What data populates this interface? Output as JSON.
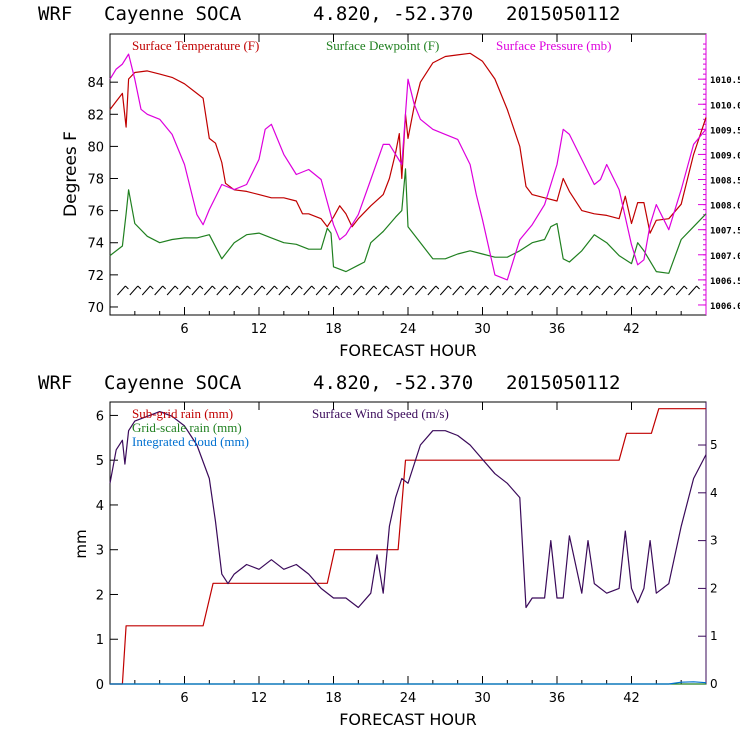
{
  "header1": {
    "model": "WRF",
    "station": "Cayenne SOCA",
    "coords": "4.820, -52.370",
    "init": "2015050112"
  },
  "header2": {
    "model": "WRF",
    "station": "Cayenne SOCA",
    "coords": "4.820, -52.370",
    "init": "2015050112"
  },
  "colors": {
    "temp": "#c00000",
    "dew": "#208020",
    "pres": "#dd00dd",
    "subrain": "#c00000",
    "gridrain": "#208020",
    "cloud": "#0070d0",
    "wind": "#3a0a5a",
    "rightaxis1": "#dd00dd",
    "rightaxis2": "#3a0a5a"
  },
  "chart_data": [
    {
      "type": "line",
      "title": "WRF Cayenne SOCA 4.820, -52.370 2015050112",
      "xlabel": "FORECAST HOUR",
      "ylabel": "Degrees F",
      "xlim": [
        0,
        48
      ],
      "ylim": [
        69.5,
        87
      ],
      "xticks": [
        "6",
        "12",
        "18",
        "24",
        "30",
        "36",
        "42"
      ],
      "yticks": [
        "70",
        "72",
        "74",
        "76",
        "78",
        "80",
        "82",
        "84"
      ],
      "y2lim": [
        1005.8,
        1011.4
      ],
      "y2ticks": [
        "1006.0",
        "1006.5",
        "1007.0",
        "1007.5",
        "1008.0",
        "1008.5",
        "1009.0",
        "1009.5",
        "1010.0",
        "1010.5"
      ],
      "legend": {
        "temp": "Surface Temperature (F)",
        "dew": "Surface Dewpoint (F)",
        "pres": "Surface Pressure (mb)"
      },
      "series": [
        {
          "name": "Surface Temperature (F)",
          "axis": "left",
          "x": [
            0,
            0.5,
            1,
            1.3,
            1.5,
            2,
            3,
            4,
            5,
            6,
            7,
            7.5,
            8,
            8.5,
            9,
            9.3,
            10,
            11,
            12,
            13,
            14,
            15,
            15.5,
            16,
            17,
            17.5,
            18,
            18.5,
            19,
            19.5,
            20,
            21,
            22,
            22.5,
            23,
            23.3,
            23.5,
            23.8,
            24,
            24.5,
            25,
            26,
            27,
            28,
            29,
            30,
            31,
            32,
            33,
            33.5,
            34,
            35,
            36,
            36.5,
            37,
            38,
            39,
            40,
            41,
            41.5,
            42,
            42.5,
            43,
            43.5,
            44,
            45,
            46,
            47,
            48
          ],
          "values": [
            82.3,
            82.8,
            83.3,
            81.2,
            84.2,
            84.6,
            84.7,
            84.5,
            84.3,
            83.9,
            83.3,
            83.0,
            80.5,
            80.2,
            79.0,
            77.7,
            77.3,
            77.2,
            77.0,
            76.8,
            76.8,
            76.6,
            75.8,
            75.8,
            75.5,
            75.0,
            75.6,
            76.3,
            75.8,
            75.0,
            75.5,
            76.3,
            77.0,
            78.0,
            79.6,
            80.8,
            78.0,
            82.0,
            80.5,
            82.5,
            84.0,
            85.2,
            85.6,
            85.7,
            85.8,
            85.3,
            84.2,
            82.3,
            80.0,
            77.5,
            77.0,
            76.8,
            76.6,
            78.0,
            77.2,
            76.0,
            75.8,
            75.7,
            75.5,
            76.9,
            75.2,
            76.5,
            76.5,
            74.6,
            75.4,
            75.5,
            76.4,
            79.5,
            81.8
          ]
        },
        {
          "name": "Surface Dewpoint (F)",
          "axis": "left",
          "x": [
            0,
            1,
            1.3,
            1.5,
            2,
            3,
            4,
            5,
            6,
            7,
            8,
            9,
            10,
            11,
            12,
            13,
            14,
            15,
            16,
            17,
            17.5,
            17.8,
            18,
            19,
            20,
            20.5,
            21,
            22,
            23,
            23.5,
            23.8,
            24,
            25,
            26,
            27,
            28,
            29,
            30,
            31,
            32,
            33,
            34,
            35,
            35.5,
            36,
            36.5,
            37,
            38,
            39,
            40,
            41,
            42,
            42.5,
            43,
            44,
            45,
            46,
            47,
            48
          ],
          "values": [
            73.2,
            73.8,
            75.8,
            77.3,
            75.2,
            74.4,
            74.0,
            74.2,
            74.3,
            74.3,
            74.5,
            73.0,
            74.0,
            74.5,
            74.6,
            74.3,
            74.0,
            73.9,
            73.6,
            73.6,
            74.9,
            74.6,
            72.5,
            72.2,
            72.6,
            72.8,
            74.0,
            74.7,
            75.6,
            76.0,
            78.6,
            75.0,
            74.0,
            73.0,
            73.0,
            73.3,
            73.5,
            73.3,
            73.1,
            73.1,
            73.5,
            74.0,
            74.2,
            75.0,
            75.2,
            73.0,
            72.8,
            73.5,
            74.5,
            74.0,
            73.2,
            72.7,
            74.0,
            73.5,
            72.2,
            72.1,
            74.2,
            75.0,
            75.8
          ]
        },
        {
          "name": "Surface Pressure (mb)",
          "axis": "right",
          "x": [
            0,
            0.5,
            1,
            1.5,
            2,
            2.5,
            3,
            4,
            5,
            6,
            7,
            7.5,
            8,
            9,
            10,
            11,
            12,
            12.5,
            13,
            14,
            15,
            16,
            17,
            18,
            18.5,
            19,
            20,
            21,
            22,
            22.5,
            23,
            23.5,
            24,
            24.5,
            25,
            26,
            27,
            28,
            29,
            29.5,
            30,
            31,
            32,
            33,
            34,
            35,
            36,
            36.5,
            37,
            38,
            39,
            39.5,
            40,
            41,
            42,
            42.5,
            43,
            43.5,
            44,
            45,
            46,
            47,
            48
          ],
          "values": [
            1010.5,
            1010.7,
            1010.8,
            1011.0,
            1010.5,
            1009.9,
            1009.8,
            1009.7,
            1009.4,
            1008.8,
            1007.8,
            1007.6,
            1007.9,
            1008.4,
            1008.3,
            1008.4,
            1008.9,
            1009.5,
            1009.6,
            1009.0,
            1008.6,
            1008.7,
            1008.5,
            1007.6,
            1007.3,
            1007.4,
            1007.8,
            1008.5,
            1009.2,
            1009.2,
            1009.0,
            1008.8,
            1010.5,
            1010.0,
            1009.7,
            1009.5,
            1009.4,
            1009.3,
            1008.8,
            1008.2,
            1007.7,
            1006.6,
            1006.5,
            1007.3,
            1007.6,
            1008.0,
            1008.8,
            1009.5,
            1009.4,
            1008.9,
            1008.4,
            1008.5,
            1008.8,
            1008.3,
            1007.2,
            1006.8,
            1006.9,
            1007.6,
            1008.0,
            1007.5,
            1008.3,
            1009.2,
            1009.5
          ]
        }
      ]
    },
    {
      "type": "line",
      "title": "WRF Cayenne SOCA 4.820, -52.370 2015050112",
      "xlabel": "FORECAST HOUR",
      "ylabel": "mm",
      "xlim": [
        0,
        48
      ],
      "ylim": [
        0,
        6.3
      ],
      "xticks": [
        "6",
        "12",
        "18",
        "24",
        "30",
        "36",
        "42"
      ],
      "yticks": [
        "0",
        "1",
        "2",
        "3",
        "4",
        "5",
        "6"
      ],
      "y2lim": [
        0,
        5.9
      ],
      "y2ticks": [
        "0",
        "1",
        "2",
        "3",
        "4",
        "5"
      ],
      "legend": {
        "subrain": "Sub-grid rain (mm)",
        "gridrain": "Grid-scale rain (mm)",
        "cloud": "Integrated cloud (mm)",
        "wind": "Surface Wind Speed (m/s)"
      },
      "series": [
        {
          "name": "Sub-grid rain (mm)",
          "axis": "left",
          "x": [
            0,
            1,
            1.3,
            7.5,
            8.3,
            17.5,
            18.1,
            23.2,
            23.8,
            41,
            41.6,
            43.6,
            44.2,
            48
          ],
          "values": [
            0,
            0,
            1.3,
            1.3,
            2.25,
            2.25,
            3.0,
            3.0,
            5.0,
            5.0,
            5.6,
            5.6,
            6.15,
            6.15
          ]
        },
        {
          "name": "Grid-scale rain (mm)",
          "axis": "left",
          "x": [
            0,
            48
          ],
          "values": [
            0,
            0
          ]
        },
        {
          "name": "Integrated cloud (mm)",
          "axis": "left",
          "x": [
            0,
            45,
            46,
            47,
            48
          ],
          "values": [
            0,
            0,
            0.04,
            0.05,
            0.03
          ]
        },
        {
          "name": "Surface Wind Speed (m/s)",
          "axis": "right",
          "x": [
            0,
            0.5,
            1,
            1.2,
            1.5,
            2,
            3,
            4,
            5,
            6,
            7,
            8,
            8.5,
            9,
            9.5,
            10,
            11,
            12,
            13,
            14,
            15,
            16,
            17,
            18,
            19,
            20,
            21,
            21.5,
            22,
            22.5,
            23,
            23.5,
            24,
            25,
            26,
            27,
            28,
            29,
            30,
            31,
            32,
            33,
            33.5,
            34,
            35,
            35.5,
            36,
            36.5,
            37,
            38,
            38.5,
            39,
            40,
            41,
            41.5,
            42,
            42.5,
            43,
            43.5,
            44,
            45,
            46,
            47,
            48
          ],
          "values": [
            4.2,
            4.9,
            5.1,
            4.6,
            5.3,
            5.5,
            5.6,
            5.7,
            5.6,
            5.4,
            5.0,
            4.3,
            3.4,
            2.3,
            2.1,
            2.3,
            2.5,
            2.4,
            2.6,
            2.4,
            2.5,
            2.3,
            2.0,
            1.8,
            1.8,
            1.6,
            1.9,
            2.7,
            1.9,
            3.3,
            3.9,
            4.3,
            4.2,
            5.0,
            5.3,
            5.3,
            5.2,
            5.0,
            4.7,
            4.4,
            4.2,
            3.9,
            1.6,
            1.8,
            1.8,
            3.0,
            1.8,
            1.8,
            3.1,
            1.9,
            3.0,
            2.1,
            1.9,
            2.0,
            3.2,
            2.0,
            1.7,
            2.0,
            3.0,
            1.9,
            2.1,
            3.3,
            4.3,
            4.8
          ]
        }
      ]
    }
  ]
}
